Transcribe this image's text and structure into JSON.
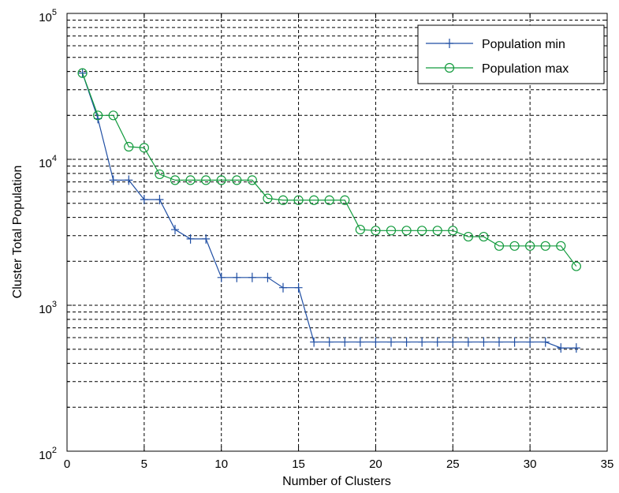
{
  "chart_data": {
    "type": "line",
    "xlabel": "Number of Clusters",
    "ylabel": "Cluster Total Population",
    "xlim": [
      0,
      35
    ],
    "ylim": [
      100,
      100000
    ],
    "y_scale": "log",
    "grid": true,
    "legend_position": "top-right",
    "x_ticks": [
      "0",
      "5",
      "10",
      "15",
      "20",
      "25",
      "30",
      "35"
    ],
    "y_ticks": [
      {
        "base": "10",
        "exp": "2"
      },
      {
        "base": "10",
        "exp": "3"
      },
      {
        "base": "10",
        "exp": "4"
      },
      {
        "base": "10",
        "exp": "5"
      }
    ],
    "x": [
      1,
      2,
      3,
      4,
      5,
      6,
      7,
      8,
      9,
      10,
      11,
      12,
      13,
      14,
      15,
      16,
      17,
      18,
      19,
      20,
      21,
      22,
      23,
      24,
      25,
      26,
      27,
      28,
      29,
      30,
      31,
      32,
      33
    ],
    "series": [
      {
        "name": "Population min",
        "color": "#1f4ea3",
        "marker": "plus",
        "values": [
          39000,
          19000,
          7200,
          7200,
          5300,
          5300,
          3300,
          2850,
          2850,
          1550,
          1550,
          1550,
          1550,
          1320,
          1320,
          560,
          560,
          560,
          560,
          560,
          560,
          560,
          560,
          560,
          560,
          560,
          560,
          560,
          560,
          560,
          560,
          510,
          510
        ]
      },
      {
        "name": "Population max",
        "color": "#119a3c",
        "marker": "circle",
        "values": [
          39000,
          20000,
          20000,
          12200,
          12000,
          7900,
          7200,
          7200,
          7200,
          7200,
          7200,
          7200,
          5400,
          5250,
          5250,
          5250,
          5250,
          5250,
          3300,
          3250,
          3250,
          3250,
          3250,
          3250,
          3250,
          2950,
          2950,
          2550,
          2550,
          2550,
          2550,
          2550,
          1850
        ]
      }
    ]
  }
}
